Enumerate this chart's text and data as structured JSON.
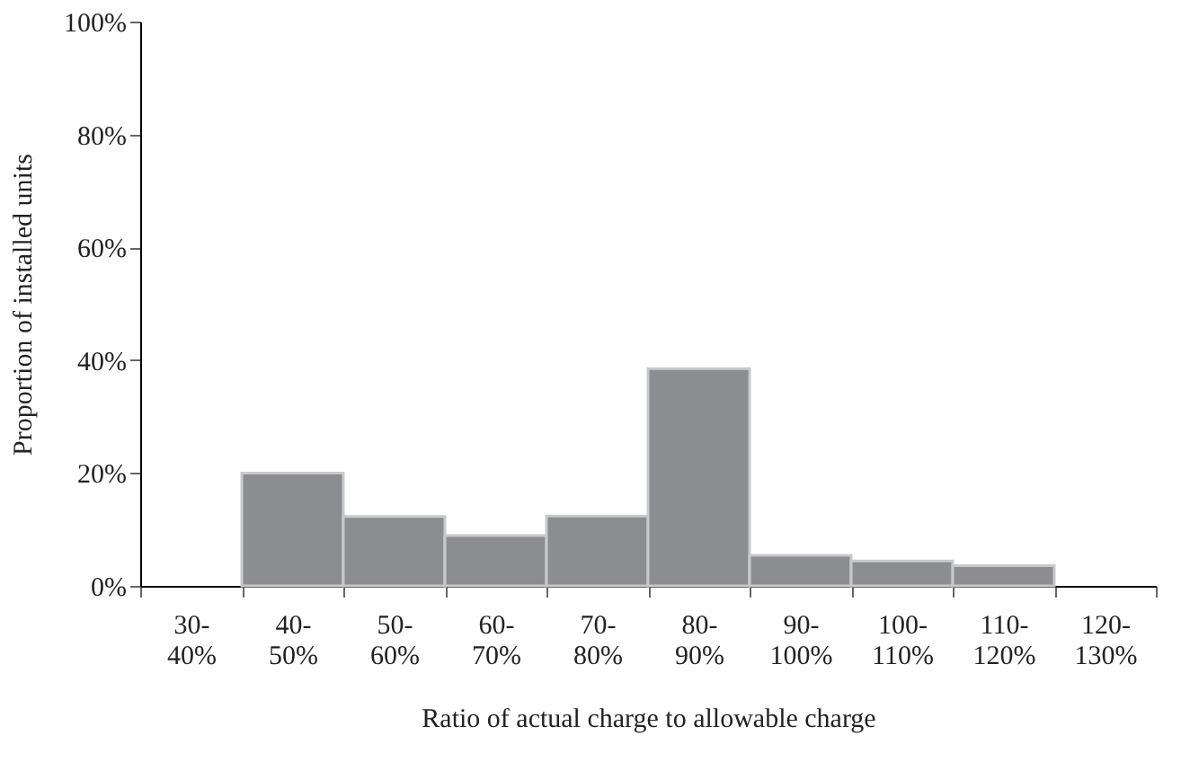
{
  "chart_data": {
    "type": "bar",
    "xlabel": "Ratio of actual charge to allowable charge",
    "ylabel": "Proportion of installed units",
    "categories": [
      "30-40%",
      "40-50%",
      "50-60%",
      "60-70%",
      "70-80%",
      "80-90%",
      "90-100%",
      "100-110%",
      "110-120%",
      "120-130%"
    ],
    "values": [
      null,
      20,
      12.3,
      8.9,
      12.4,
      38.5,
      5.4,
      4.4,
      3.6,
      null
    ],
    "color": "#8c8d91",
    "ylim": [
      0,
      100
    ],
    "yticks": [
      {
        "value": 0,
        "label": "0%"
      },
      {
        "value": 20,
        "label": "20%"
      },
      {
        "value": 40,
        "label": "40%"
      },
      {
        "value": 60,
        "label": "60%"
      },
      {
        "value": 80,
        "label": "80%"
      },
      {
        "value": 100,
        "label": "100%"
      }
    ],
    "grid": false
  }
}
